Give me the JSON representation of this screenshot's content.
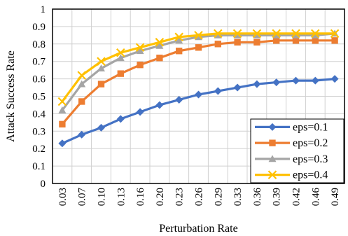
{
  "chart_data": {
    "type": "line",
    "xlabel": "Perturbation Rate",
    "ylabel": "Attack Success Rate",
    "categories": [
      "0.03",
      "0.07",
      "0.10",
      "0.13",
      "0.16",
      "0.20",
      "0.23",
      "0.26",
      "0.29",
      "0.33",
      "0.36",
      "0.39",
      "0.42",
      "0.46",
      "0.49"
    ],
    "ylim": [
      0,
      1
    ],
    "yticks": [
      "0",
      "0.1",
      "0.2",
      "0.3",
      "0.4",
      "0.5",
      "0.6",
      "0.7",
      "0.8",
      "0.9",
      "1"
    ],
    "grid": true,
    "legend_position": "bottom-right",
    "series": [
      {
        "name": "eps=0.1",
        "color": "#4472C4",
        "marker": "diamond",
        "values": [
          0.23,
          0.28,
          0.32,
          0.37,
          0.41,
          0.45,
          0.48,
          0.51,
          0.53,
          0.55,
          0.57,
          0.58,
          0.59,
          0.59,
          0.6
        ]
      },
      {
        "name": "eps=0.2",
        "color": "#ED7D31",
        "marker": "square",
        "values": [
          0.34,
          0.47,
          0.57,
          0.63,
          0.68,
          0.72,
          0.76,
          0.78,
          0.8,
          0.81,
          0.81,
          0.82,
          0.82,
          0.82,
          0.82
        ]
      },
      {
        "name": "eps=0.3",
        "color": "#A5A5A5",
        "marker": "triangle",
        "values": [
          0.42,
          0.57,
          0.66,
          0.72,
          0.76,
          0.79,
          0.82,
          0.84,
          0.85,
          0.85,
          0.85,
          0.85,
          0.85,
          0.85,
          0.86
        ]
      },
      {
        "name": "eps=0.4",
        "color": "#FFC000",
        "marker": "x",
        "values": [
          0.47,
          0.62,
          0.7,
          0.75,
          0.78,
          0.81,
          0.84,
          0.85,
          0.86,
          0.86,
          0.86,
          0.86,
          0.86,
          0.86,
          0.86
        ]
      }
    ]
  }
}
